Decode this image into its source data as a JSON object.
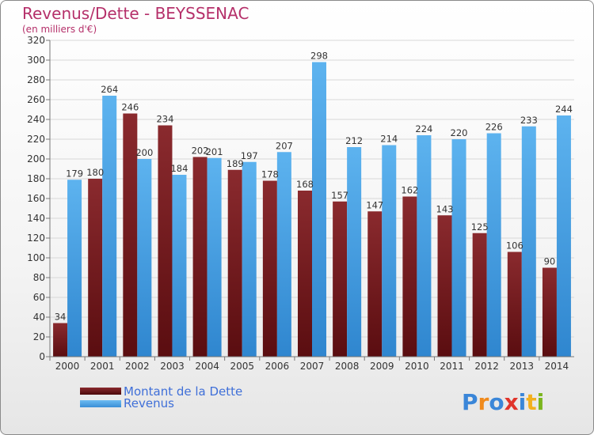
{
  "chart_data": {
    "type": "bar",
    "title": "Revenus/Dette - BEYSSENAC",
    "subtitle": "(en milliers d'€)",
    "categories": [
      "2000",
      "2001",
      "2002",
      "2003",
      "2004",
      "2005",
      "2006",
      "2007",
      "2008",
      "2009",
      "2010",
      "2011",
      "2012",
      "2013",
      "2014"
    ],
    "series": [
      {
        "name": "Montant de la Dette",
        "color": "#7a1f22",
        "values": [
          34,
          180,
          246,
          234,
          202,
          189,
          178,
          168,
          157,
          147,
          162,
          143,
          125,
          106,
          90
        ]
      },
      {
        "name": "Revenus",
        "color": "#4ea6e6",
        "values": [
          179,
          264,
          200,
          184,
          201,
          197,
          207,
          298,
          212,
          214,
          224,
          220,
          226,
          233,
          244
        ]
      }
    ],
    "ylim": [
      0,
      320
    ],
    "ytick_step": 20,
    "grid": true,
    "legend_position": "bottom-left",
    "label_colors": {
      "title": "#b5306a",
      "legend": "#3f6fd8"
    }
  },
  "branding": {
    "logo_text": "Proxiti",
    "logo_letters": [
      {
        "ch": "P",
        "color": "#3a86d8"
      },
      {
        "ch": "r",
        "color": "#f08a1c"
      },
      {
        "ch": "o",
        "color": "#3a86d8"
      },
      {
        "ch": "x",
        "color": "#e0342b"
      },
      {
        "ch": "i",
        "color": "#3a86d8"
      },
      {
        "ch": "t",
        "color": "#f2b01e"
      },
      {
        "ch": "i",
        "color": "#7ab51d"
      }
    ]
  }
}
